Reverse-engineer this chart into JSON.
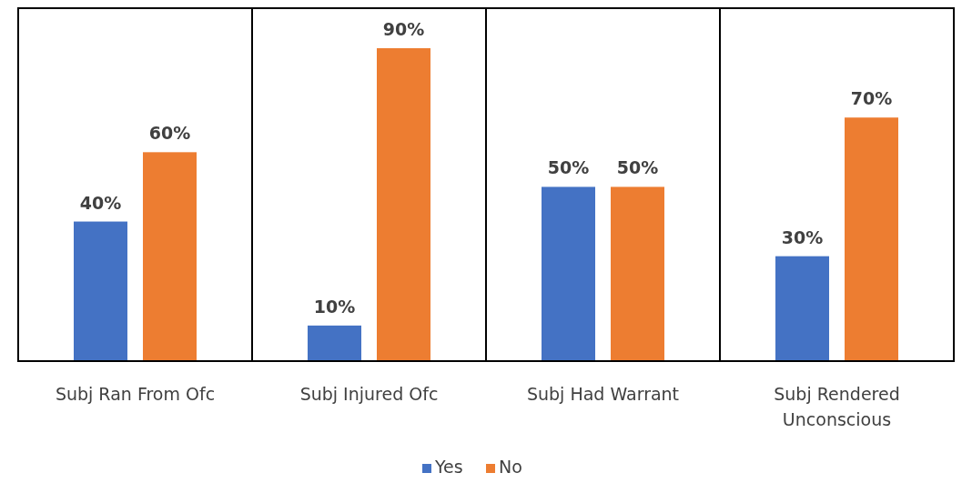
{
  "chart_data": {
    "type": "bar",
    "categories": [
      "Subj Ran From Ofc",
      "Subj Injured Ofc",
      "Subj Had Warrant",
      "Subj Rendered Unconscious"
    ],
    "series": [
      {
        "name": "Yes",
        "color": "#4472c4",
        "values": [
          40,
          10,
          50,
          30
        ],
        "value_labels": [
          "40%",
          "10%",
          "50%",
          "30%"
        ]
      },
      {
        "name": "No",
        "color": "#ed7d31",
        "values": [
          60,
          90,
          50,
          70
        ],
        "value_labels": [
          "60%",
          "90%",
          "50%",
          "70%"
        ]
      }
    ],
    "relative": false,
    "legend": "bottom",
    "grid": false
  }
}
